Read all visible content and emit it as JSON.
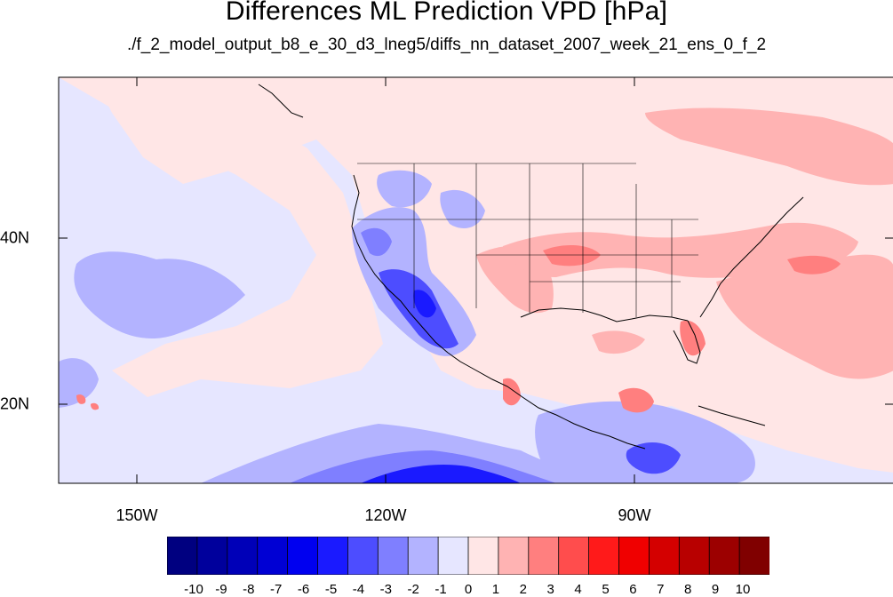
{
  "title": "Differences ML Prediction VPD [hPa]",
  "subtitle": "./f_2_model_output_b8_e_30_d3_lneg5/diffs_nn_dataset_2007_week_21_ens_0_f_2",
  "lon_labels": [
    "150W",
    "120W",
    "90W"
  ],
  "lat_labels": [
    "40N",
    "20N"
  ],
  "colorbar": {
    "labels": [
      "-10",
      "-9",
      "-8",
      "-7",
      "-6",
      "-5",
      "-4",
      "-3",
      "-2",
      "-1",
      "0",
      "1",
      "2",
      "3",
      "4",
      "5",
      "6",
      "7",
      "8",
      "9",
      "10"
    ],
    "colors": [
      "#000080",
      "#00009c",
      "#0000b8",
      "#0000d4",
      "#0000f0",
      "#1a1aff",
      "#4d4dff",
      "#7f7fff",
      "#b3b3ff",
      "#e6e6ff",
      "#ffe6e6",
      "#ffb3b3",
      "#ff7f7f",
      "#ff4d4d",
      "#ff1a1a",
      "#f00000",
      "#d40000",
      "#b80000",
      "#9c0000",
      "#800000"
    ]
  },
  "map": {
    "extent": {
      "lon": [
        -160,
        -60
      ],
      "lat": [
        10,
        59
      ]
    },
    "background_color": "#ffe6e6",
    "coastline_color": "#000000"
  }
}
